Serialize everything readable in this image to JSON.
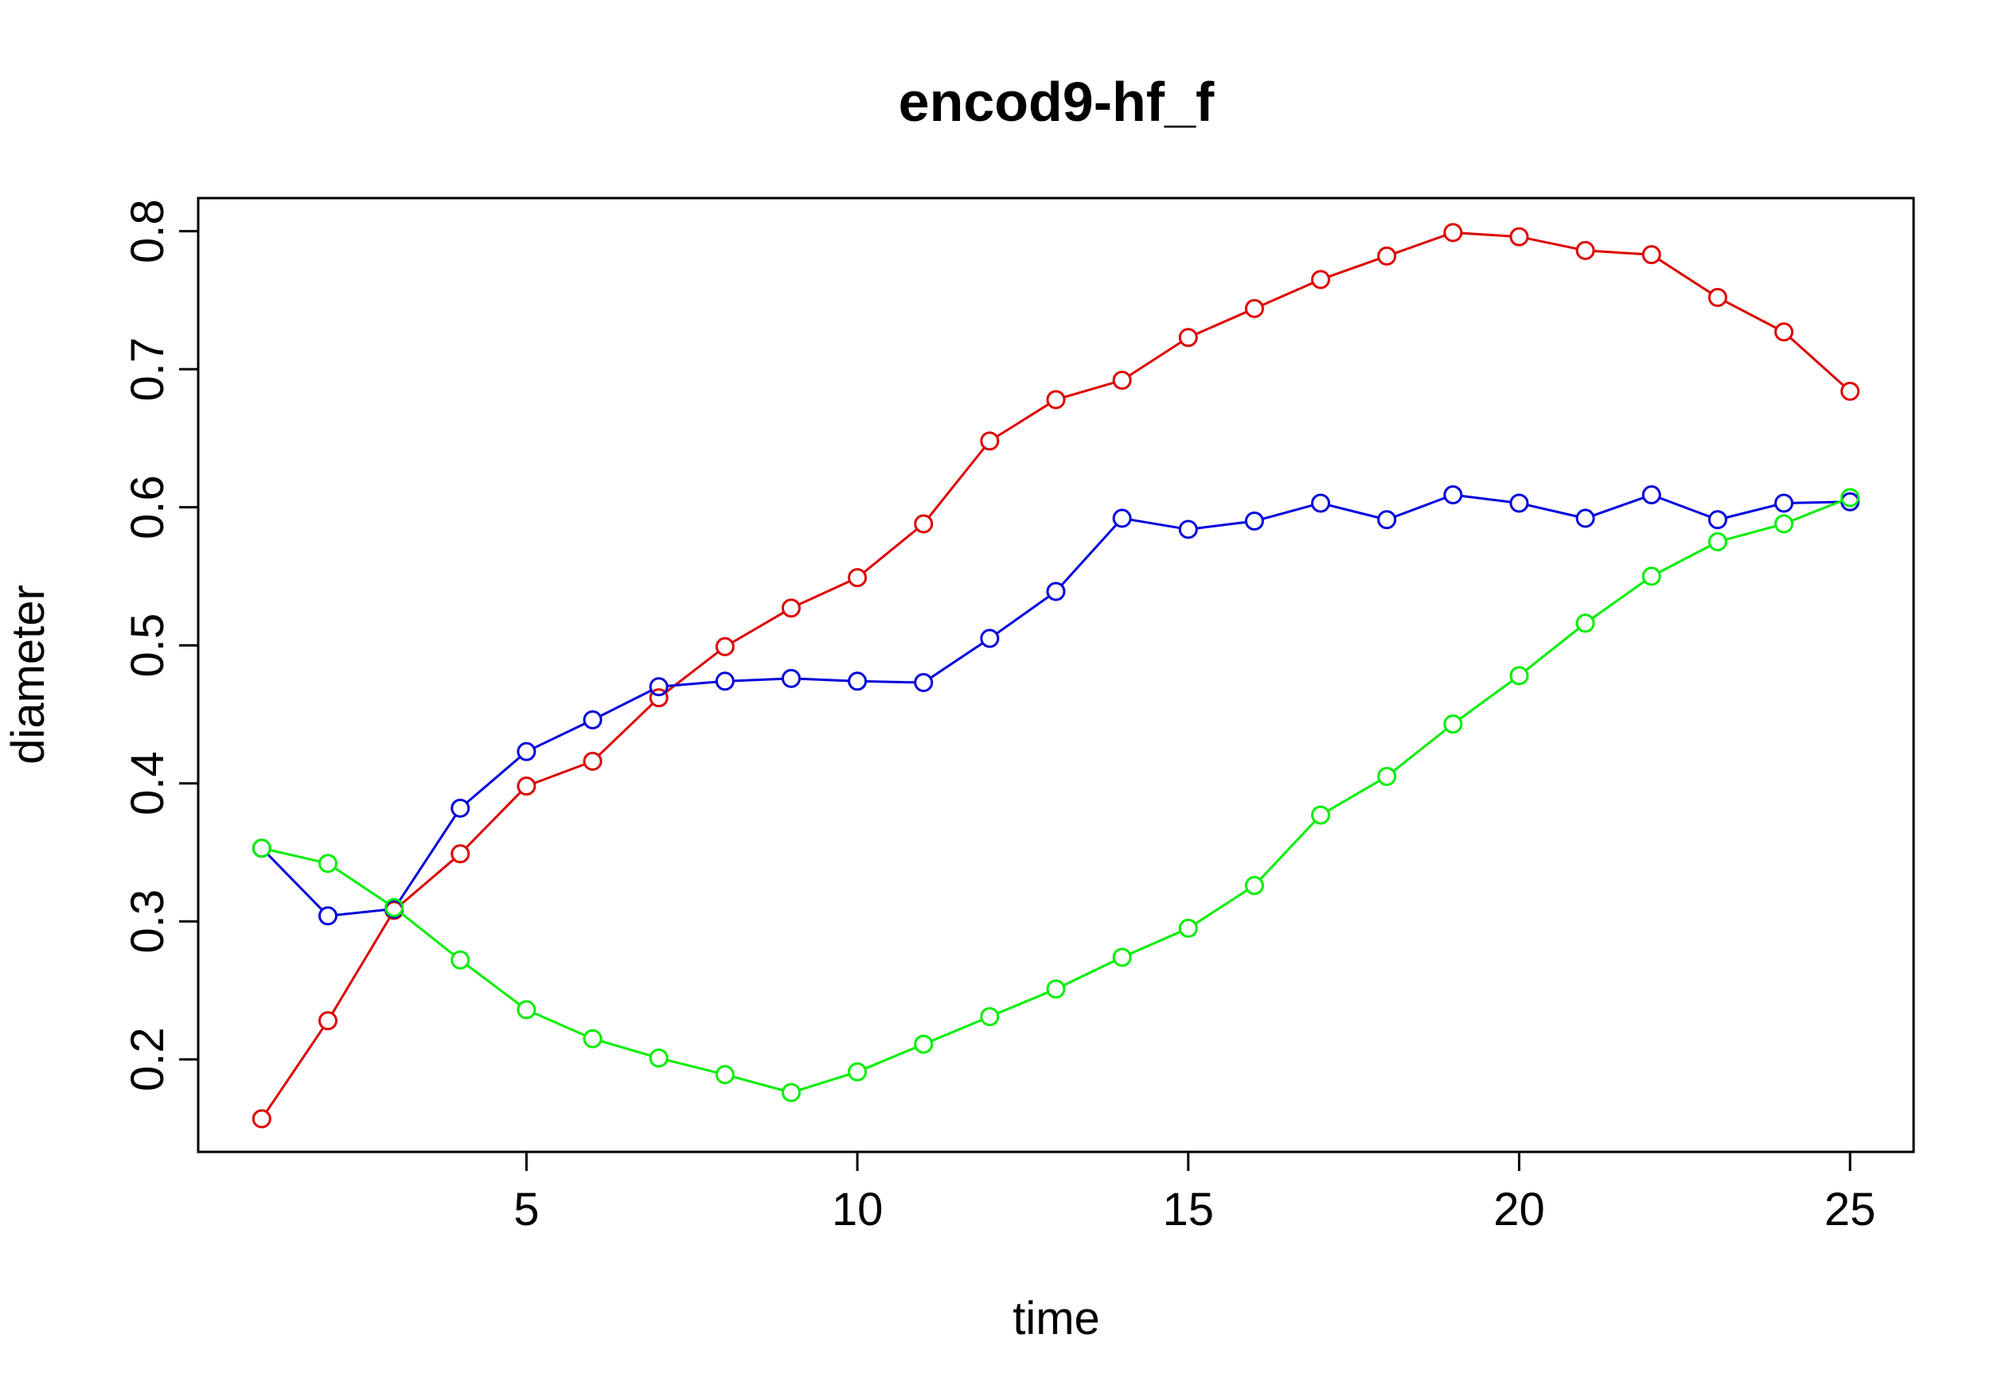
{
  "chart_data": {
    "type": "line",
    "title": "encod9-hf_f",
    "xlabel": "time",
    "ylabel": "diameter",
    "xlim": [
      0.04,
      25.96
    ],
    "ylim": [
      0.133,
      0.824
    ],
    "x_ticks": [
      5,
      10,
      15,
      20,
      25
    ],
    "x_tick_labels": [
      "5",
      "10",
      "15",
      "20",
      "25"
    ],
    "y_ticks": [
      0.2,
      0.3,
      0.4,
      0.5,
      0.6,
      0.7,
      0.8
    ],
    "y_tick_labels": [
      "0.2",
      "0.3",
      "0.4",
      "0.5",
      "0.6",
      "0.7",
      "0.8"
    ],
    "grid": false,
    "x": [
      1,
      2,
      3,
      4,
      5,
      6,
      7,
      8,
      9,
      10,
      11,
      12,
      13,
      14,
      15,
      16,
      17,
      18,
      19,
      20,
      21,
      22,
      23,
      24,
      25
    ],
    "series": [
      {
        "color": "#dd0000",
        "values": [
          0.157,
          0.228,
          0.308,
          0.349,
          0.398,
          0.416,
          0.462,
          0.499,
          0.527,
          0.549,
          0.588,
          0.648,
          0.678,
          0.692,
          0.723,
          0.744,
          0.765,
          0.782,
          0.799,
          0.796,
          0.786,
          0.783,
          0.752,
          0.727,
          0.684
        ]
      },
      {
        "color": "#0000dd",
        "values": [
          0.353,
          0.304,
          0.309,
          0.382,
          0.423,
          0.446,
          0.47,
          0.474,
          0.476,
          0.474,
          0.473,
          0.505,
          0.539,
          0.592,
          0.584,
          0.59,
          0.603,
          0.591,
          0.609,
          0.603,
          0.592,
          0.609,
          0.591,
          0.603,
          0.604
        ]
      },
      {
        "color": "#00ee00",
        "values": [
          0.353,
          0.342,
          0.31,
          0.272,
          0.236,
          0.215,
          0.201,
          0.189,
          0.176,
          0.191,
          0.211,
          0.231,
          0.251,
          0.274,
          0.295,
          0.326,
          0.377,
          0.405,
          0.443,
          0.478,
          0.516,
          0.55,
          0.575,
          0.588,
          0.607
        ]
      }
    ]
  }
}
